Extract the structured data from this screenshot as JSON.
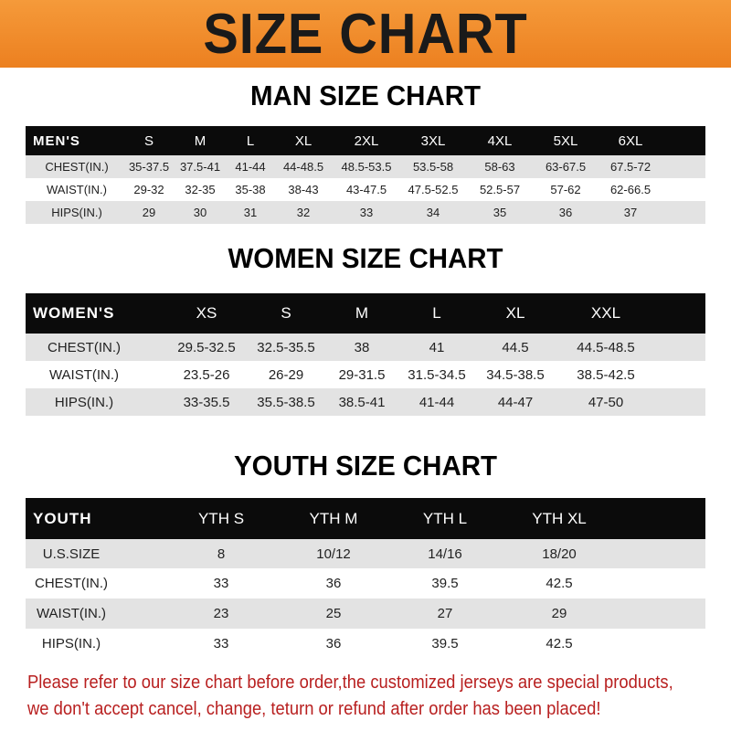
{
  "title": "SIZE CHART",
  "colors": {
    "banner": "#ef8a2a",
    "header_row": "#0b0b0b",
    "stripe": "#e3e3e3",
    "notice": "#b81f1f"
  },
  "men": {
    "title": "MAN SIZE CHART",
    "header": [
      "MEN'S",
      "S",
      "M",
      "L",
      "XL",
      "2XL",
      "3XL",
      "4XL",
      "5XL",
      "6XL"
    ],
    "rows": [
      [
        "CHEST(IN.)",
        "35-37.5",
        "37.5-41",
        "41-44",
        "44-48.5",
        "48.5-53.5",
        "53.5-58",
        "58-63",
        "63-67.5",
        "67.5-72"
      ],
      [
        "WAIST(IN.)",
        "29-32",
        "32-35",
        "35-38",
        "38-43",
        "43-47.5",
        "47.5-52.5",
        "52.5-57",
        "57-62",
        "62-66.5"
      ],
      [
        "HIPS(IN.)",
        "29",
        "30",
        "31",
        "32",
        "33",
        "34",
        "35",
        "36",
        "37"
      ]
    ]
  },
  "women": {
    "title": "WOMEN SIZE CHART",
    "header": [
      "WOMEN'S",
      "XS",
      "S",
      "M",
      "L",
      "XL",
      "XXL"
    ],
    "rows": [
      [
        "CHEST(IN.)",
        "29.5-32.5",
        "32.5-35.5",
        "38",
        "41",
        "44.5",
        "44.5-48.5"
      ],
      [
        "WAIST(IN.)",
        "23.5-26",
        "26-29",
        "29-31.5",
        "31.5-34.5",
        "34.5-38.5",
        "38.5-42.5"
      ],
      [
        "HIPS(IN.)",
        "33-35.5",
        "35.5-38.5",
        "38.5-41",
        "41-44",
        "44-47",
        "47-50"
      ]
    ]
  },
  "youth": {
    "title": "YOUTH SIZE CHART",
    "header": [
      "YOUTH",
      "YTH S",
      "YTH M",
      "YTH L",
      "YTH XL"
    ],
    "rows": [
      [
        "U.S.SIZE",
        "8",
        "10/12",
        "14/16",
        "18/20"
      ],
      [
        "CHEST(IN.)",
        "33",
        "36",
        "39.5",
        "42.5"
      ],
      [
        "WAIST(IN.)",
        "23",
        "25",
        "27",
        "29"
      ],
      [
        "HIPS(IN.)",
        "33",
        "36",
        "39.5",
        "42.5"
      ]
    ]
  },
  "notice": {
    "line1": "Please refer to our size chart before order,the customized jerseys are special products,",
    "line2": "we don't accept cancel, change, teturn or refund after order has been placed!"
  }
}
